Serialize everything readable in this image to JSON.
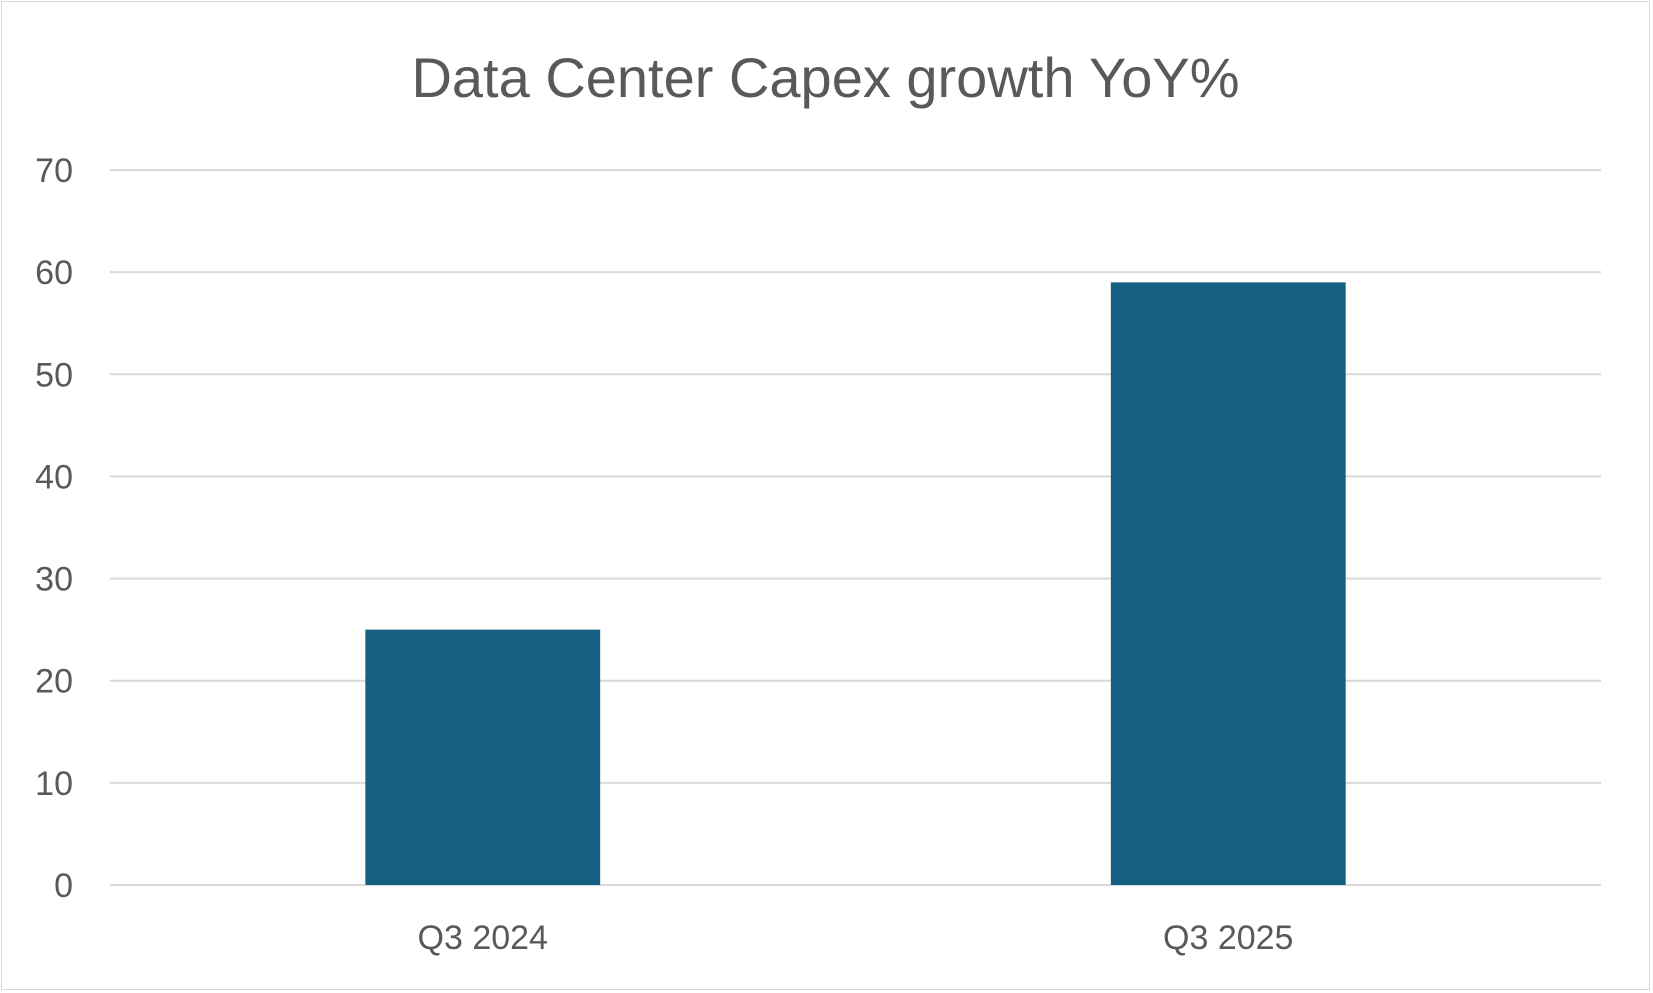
{
  "chart_data": {
    "type": "bar",
    "title": "Data Center Capex growth YoY%",
    "xlabel": "",
    "ylabel": "",
    "categories": [
      "Q3 2024",
      "Q3 2025"
    ],
    "values": [
      25,
      59
    ],
    "ylim": [
      0,
      70
    ],
    "yticks": [
      0,
      10,
      20,
      30,
      40,
      50,
      60,
      70
    ],
    "grid": true,
    "legend": "none",
    "bar_color": "#156082"
  }
}
